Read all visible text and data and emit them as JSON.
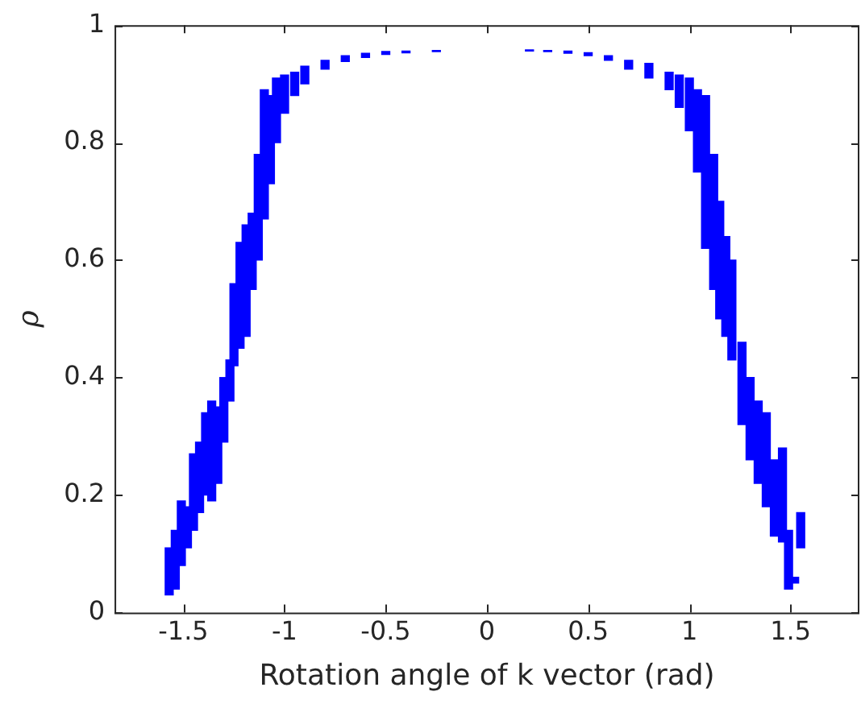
{
  "chart_data": {
    "type": "bar",
    "xlabel": "Rotation angle of k vector (rad)",
    "ylabel": "ρ",
    "xlim": [
      -1.84,
      1.84
    ],
    "xticks": [
      -1.5,
      -1,
      -0.5,
      0,
      0.5,
      1,
      1.5
    ],
    "ylim": [
      0,
      1
    ],
    "yticks": [
      0,
      0.2,
      0.4,
      0.6,
      0.8,
      1
    ],
    "grid": false,
    "legend": false,
    "color": "#0000ff",
    "x": [
      -1.57,
      -1.54,
      -1.51,
      -1.48,
      -1.45,
      -1.42,
      -1.39,
      -1.36,
      -1.33,
      -1.3,
      -1.27,
      -1.25,
      -1.22,
      -1.19,
      -1.16,
      -1.13,
      -1.1,
      -1.07,
      -1.04,
      -1,
      -0.95,
      -0.9,
      -0.8,
      -0.7,
      -0.6,
      -0.5,
      -0.4,
      -0.25,
      0.21,
      0.3,
      0.4,
      0.5,
      0.6,
      0.7,
      0.8,
      0.9,
      0.95,
      1,
      1.04,
      1.08,
      1.12,
      1.15,
      1.18,
      1.21,
      1.26,
      1.3,
      1.34,
      1.38,
      1.42,
      1.46,
      1.49,
      1.52,
      1.55
    ],
    "base": [
      0.03,
      0.04,
      0.08,
      0.11,
      0.14,
      0.17,
      0.2,
      0.19,
      0.22,
      0.29,
      0.36,
      0.42,
      0.45,
      0.47,
      0.55,
      0.6,
      0.67,
      0.73,
      0.8,
      0.85,
      0.88,
      0.9,
      0.925,
      0.938,
      0.945,
      0.95,
      0.953,
      0.955,
      0.956,
      0.955,
      0.952,
      0.948,
      0.94,
      0.925,
      0.91,
      0.89,
      0.86,
      0.82,
      0.75,
      0.62,
      0.55,
      0.5,
      0.47,
      0.43,
      0.32,
      0.26,
      0.22,
      0.18,
      0.13,
      0.12,
      0.04,
      0.05,
      0.11
    ],
    "values": [
      0.08,
      0.1,
      0.11,
      0.07,
      0.13,
      0.12,
      0.14,
      0.17,
      0.13,
      0.11,
      0.07,
      0.14,
      0.18,
      0.19,
      0.13,
      0.18,
      0.22,
      0.15,
      0.11,
      0.065,
      0.04,
      0.03,
      0.015,
      0.01,
      0.007,
      0.005,
      0.003,
      0.002,
      0.002,
      0.002,
      0.004,
      0.005,
      0.008,
      0.015,
      0.025,
      0.03,
      0.055,
      0.09,
      0.14,
      0.26,
      0.23,
      0.2,
      0.17,
      0.17,
      0.14,
      0.14,
      0.14,
      0.16,
      0.13,
      0.16,
      0.1,
      0.01,
      0.06
    ]
  }
}
